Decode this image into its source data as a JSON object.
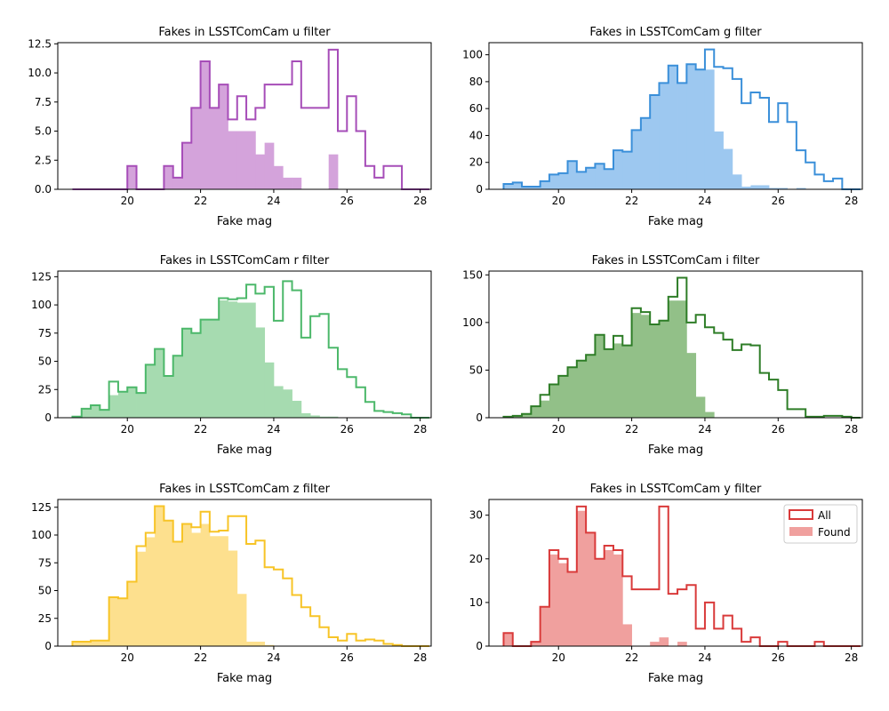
{
  "xlabel": "Fake mag",
  "legend": {
    "placement": "upper right",
    "all_label": "All",
    "found_label": "Found"
  },
  "chart_data": [
    {
      "type": "histogram",
      "title": "Fakes in LSSTComCam u filter",
      "xlabel": "Fake mag",
      "xlim": [
        18.1,
        28.3
      ],
      "ylim": [
        0,
        12.6
      ],
      "xticks": [
        20,
        22,
        24,
        26,
        28
      ],
      "yticks": [
        "0.0",
        "2.5",
        "5.0",
        "7.5",
        "10.0",
        "12.5"
      ],
      "bin_start": 18.5,
      "bin_width": 0.25,
      "all_color": "#a64db8",
      "found_color": "#d4a3db",
      "series": [
        {
          "name": "All",
          "style": "step",
          "values": [
            0,
            0,
            0,
            0,
            0,
            0,
            2,
            0,
            0,
            0,
            2,
            1,
            4,
            7,
            11,
            7,
            9,
            6,
            8,
            6,
            7,
            9,
            9,
            9,
            11,
            7,
            7,
            7,
            12,
            5,
            8,
            5,
            2,
            1,
            2,
            2,
            0,
            0,
            0
          ]
        },
        {
          "name": "Found",
          "style": "filled",
          "values": [
            0,
            0,
            0,
            0,
            0,
            0,
            2,
            0,
            0,
            0,
            2,
            1,
            4,
            7,
            11,
            7,
            9,
            5,
            5,
            5,
            3,
            4,
            2,
            1,
            1,
            0,
            0,
            0,
            3,
            0,
            0,
            0,
            0,
            0,
            0,
            0,
            0,
            0,
            0
          ]
        }
      ]
    },
    {
      "type": "histogram",
      "title": "Fakes in LSSTComCam g filter",
      "xlabel": "Fake mag",
      "xlim": [
        18.1,
        28.3
      ],
      "ylim": [
        0,
        109
      ],
      "xticks": [
        20,
        22,
        24,
        26,
        28
      ],
      "yticks": [
        "0",
        "20",
        "40",
        "60",
        "80",
        "100"
      ],
      "bin_start": 18.5,
      "bin_width": 0.25,
      "all_color": "#3a8fd9",
      "found_color": "#9dc8f0",
      "series": [
        {
          "name": "All",
          "style": "step",
          "values": [
            4,
            5,
            2,
            2,
            6,
            11,
            12,
            21,
            13,
            16,
            19,
            15,
            29,
            28,
            44,
            53,
            70,
            79,
            92,
            79,
            93,
            89,
            104,
            91,
            90,
            82,
            64,
            72,
            68,
            50,
            64,
            50,
            29,
            20,
            11,
            6,
            8,
            0,
            0
          ]
        },
        {
          "name": "Found",
          "style": "filled",
          "values": [
            4,
            5,
            2,
            2,
            6,
            11,
            12,
            21,
            13,
            16,
            19,
            15,
            29,
            28,
            44,
            53,
            70,
            79,
            92,
            79,
            93,
            89,
            89,
            43,
            30,
            11,
            2,
            3,
            3,
            1,
            1,
            0,
            1,
            0,
            0,
            0,
            0,
            0,
            0
          ]
        }
      ]
    },
    {
      "type": "histogram",
      "title": "Fakes in LSSTComCam r filter",
      "xlabel": "Fake mag",
      "xlim": [
        18.1,
        28.3
      ],
      "ylim": [
        0,
        130
      ],
      "xticks": [
        20,
        22,
        24,
        26,
        28
      ],
      "yticks": [
        "0",
        "25",
        "50",
        "75",
        "100",
        "125"
      ],
      "bin_start": 18.5,
      "bin_width": 0.25,
      "all_color": "#4cb86a",
      "found_color": "#a6dbb0",
      "series": [
        {
          "name": "All",
          "style": "step",
          "values": [
            1,
            8,
            11,
            7,
            32,
            23,
            27,
            22,
            47,
            61,
            37,
            55,
            79,
            75,
            87,
            87,
            106,
            105,
            106,
            118,
            110,
            116,
            86,
            121,
            113,
            71,
            90,
            92,
            62,
            43,
            36,
            27,
            14,
            6,
            5,
            4,
            3,
            0,
            0
          ]
        },
        {
          "name": "Found",
          "style": "filled",
          "values": [
            1,
            8,
            11,
            7,
            20,
            23,
            27,
            22,
            47,
            61,
            37,
            55,
            79,
            75,
            87,
            87,
            104,
            103,
            102,
            102,
            80,
            49,
            28,
            25,
            15,
            4,
            2,
            1,
            1,
            0,
            0,
            0,
            0,
            0,
            0,
            0,
            0,
            0,
            0
          ]
        }
      ]
    },
    {
      "type": "histogram",
      "title": "Fakes in LSSTComCam i filter",
      "xlabel": "Fake mag",
      "xlim": [
        18.1,
        28.3
      ],
      "ylim": [
        0,
        154
      ],
      "xticks": [
        20,
        22,
        24,
        26,
        28
      ],
      "yticks": [
        "0",
        "50",
        "100",
        "150"
      ],
      "bin_start": 18.5,
      "bin_width": 0.25,
      "all_color": "#2e7d27",
      "found_color": "#92c088",
      "series": [
        {
          "name": "All",
          "style": "step",
          "values": [
            1,
            2,
            4,
            12,
            24,
            35,
            44,
            53,
            60,
            66,
            87,
            72,
            86,
            76,
            115,
            111,
            98,
            102,
            127,
            147,
            100,
            108,
            95,
            89,
            82,
            71,
            77,
            76,
            47,
            40,
            29,
            9,
            9,
            1,
            1,
            2,
            2,
            1,
            0
          ]
        },
        {
          "name": "Found",
          "style": "filled",
          "values": [
            1,
            2,
            4,
            12,
            18,
            35,
            44,
            53,
            60,
            66,
            87,
            72,
            78,
            76,
            110,
            108,
            98,
            102,
            123,
            123,
            68,
            22,
            6,
            0,
            0,
            0,
            0,
            0,
            0,
            0,
            0,
            0,
            0,
            0,
            0,
            0,
            0,
            0,
            0
          ]
        }
      ]
    },
    {
      "type": "histogram",
      "title": "Fakes in LSSTComCam z filter",
      "xlabel": "Fake mag",
      "xlim": [
        18.1,
        28.3
      ],
      "ylim": [
        0,
        132
      ],
      "xticks": [
        20,
        22,
        24,
        26,
        28
      ],
      "yticks": [
        "0",
        "25",
        "50",
        "75",
        "100",
        "125"
      ],
      "bin_start": 18.5,
      "bin_width": 0.25,
      "all_color": "#f7c427",
      "found_color": "#fde08e",
      "series": [
        {
          "name": "All",
          "style": "step",
          "values": [
            4,
            4,
            5,
            5,
            44,
            43,
            58,
            90,
            102,
            126,
            113,
            94,
            110,
            107,
            121,
            103,
            104,
            117,
            117,
            92,
            95,
            71,
            69,
            61,
            46,
            35,
            27,
            17,
            8,
            5,
            11,
            5,
            6,
            5,
            2,
            1,
            0,
            0,
            0
          ]
        },
        {
          "name": "Found",
          "style": "filled",
          "values": [
            4,
            4,
            5,
            5,
            44,
            43,
            58,
            85,
            98,
            126,
            113,
            94,
            110,
            102,
            110,
            99,
            99,
            86,
            47,
            4,
            4,
            1,
            0,
            0,
            0,
            0,
            0,
            0,
            0,
            0,
            0,
            0,
            0,
            0,
            0,
            0,
            0,
            0,
            0
          ]
        }
      ]
    },
    {
      "type": "histogram",
      "title": "Fakes in LSSTComCam y filter",
      "xlabel": "Fake mag",
      "xlim": [
        18.1,
        28.3
      ],
      "ylim": [
        0,
        33.6
      ],
      "xticks": [
        20,
        22,
        24,
        26,
        28
      ],
      "yticks": [
        "0",
        "10",
        "20",
        "30"
      ],
      "bin_start": 18.5,
      "bin_width": 0.25,
      "all_color": "#d93a3a",
      "found_color": "#f0a09e",
      "series": [
        {
          "name": "All",
          "style": "step",
          "values": [
            3,
            0,
            0,
            1,
            9,
            22,
            20,
            17,
            32,
            26,
            20,
            23,
            22,
            16,
            13,
            13,
            13,
            32,
            12,
            13,
            14,
            4,
            10,
            4,
            7,
            4,
            1,
            2,
            0,
            0,
            1,
            0,
            0,
            0,
            1,
            0,
            0,
            0,
            0
          ]
        },
        {
          "name": "Found",
          "style": "filled",
          "values": [
            3,
            0,
            0,
            1,
            9,
            21,
            19,
            17,
            31,
            26,
            20,
            22,
            21,
            5,
            0,
            0,
            1,
            2,
            0,
            1,
            0,
            0,
            0,
            0,
            0,
            0,
            0,
            0,
            0,
            0,
            0,
            0,
            0,
            0,
            0,
            0,
            0,
            0,
            0
          ]
        }
      ]
    }
  ]
}
